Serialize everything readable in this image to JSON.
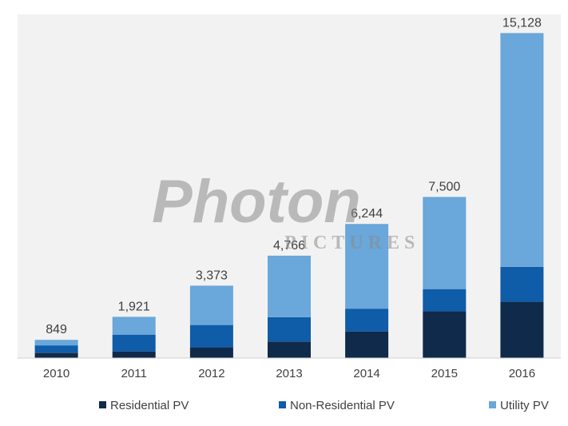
{
  "chart_data": {
    "type": "bar",
    "stacked": true,
    "categories": [
      "2010",
      "2011",
      "2012",
      "2013",
      "2014",
      "2015",
      "2016"
    ],
    "totals_labels": [
      "849",
      "1,921",
      "3,373",
      "4,766",
      "6,244",
      "7,500",
      "15,128"
    ],
    "series": [
      {
        "name": "Residential PV",
        "color": "#0f2a4a",
        "values": [
          250,
          310,
          500,
          760,
          1240,
          2180,
          2620
        ]
      },
      {
        "name": "Non-Residential PV",
        "color": "#0f5ca8",
        "values": [
          340,
          780,
          1040,
          1140,
          1060,
          1030,
          1630
        ]
      },
      {
        "name": "Utility PV",
        "color": "#6aa7da",
        "values": [
          259,
          831,
          1833,
          2866,
          3944,
          4290,
          10878
        ]
      }
    ],
    "ylim": [
      0,
      16000
    ],
    "grid": false,
    "legend": "bottom",
    "background": "#f2f2f2",
    "watermark": {
      "main": "Photon",
      "sub": "PICTURES"
    }
  }
}
